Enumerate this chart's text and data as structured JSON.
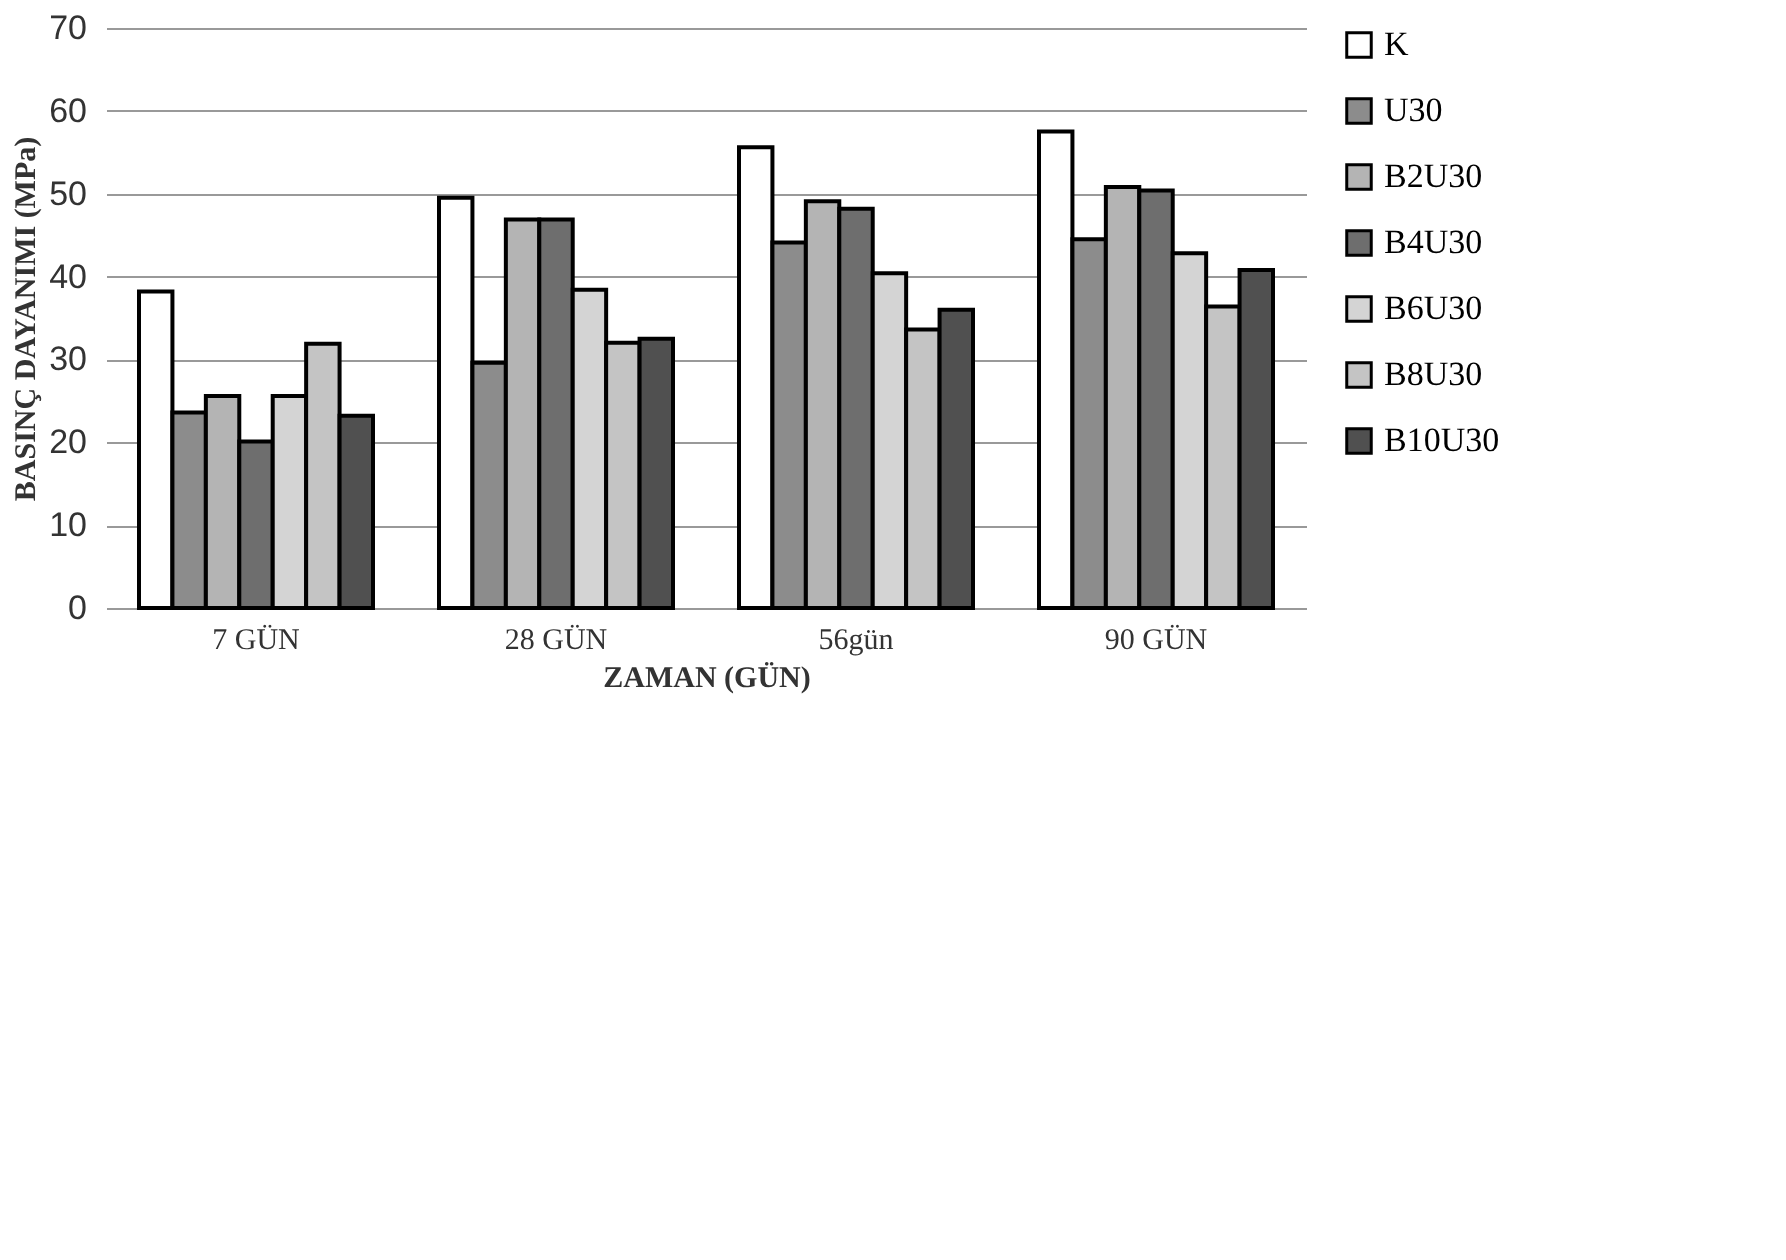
{
  "chart_data": {
    "type": "bar",
    "xlabel": "ZAMAN (GÜN)",
    "ylabel": "BASINÇ DAYANIMI (MPa)",
    "categories": [
      "7 GÜN",
      "28 GÜN",
      "56gün",
      "90 GÜN"
    ],
    "series": [
      {
        "name": "K",
        "color": "#ffffff",
        "values": [
          38.2,
          49.5,
          55.6,
          57.5
        ]
      },
      {
        "name": "U30",
        "color": "#8c8c8c",
        "values": [
          23.6,
          29.6,
          44.1,
          44.5
        ]
      },
      {
        "name": "B2U30",
        "color": "#b4b4b4",
        "values": [
          25.6,
          46.9,
          49.1,
          50.8
        ]
      },
      {
        "name": "B4U30",
        "color": "#6e6e6e",
        "values": [
          20.1,
          46.9,
          48.2,
          50.4
        ]
      },
      {
        "name": "B6U30",
        "color": "#d4d4d4",
        "values": [
          25.6,
          38.4,
          40.4,
          42.8
        ]
      },
      {
        "name": "B8U30",
        "color": "#c4c4c4",
        "values": [
          31.9,
          32.0,
          33.6,
          36.4
        ]
      },
      {
        "name": "B10U30",
        "color": "#505050",
        "values": [
          23.2,
          32.5,
          36.0,
          40.8
        ]
      }
    ],
    "ylim": [
      0,
      70
    ],
    "yticks": [
      0,
      10,
      20,
      30,
      40,
      50,
      60,
      70
    ],
    "grid": "y",
    "legend": "right"
  }
}
